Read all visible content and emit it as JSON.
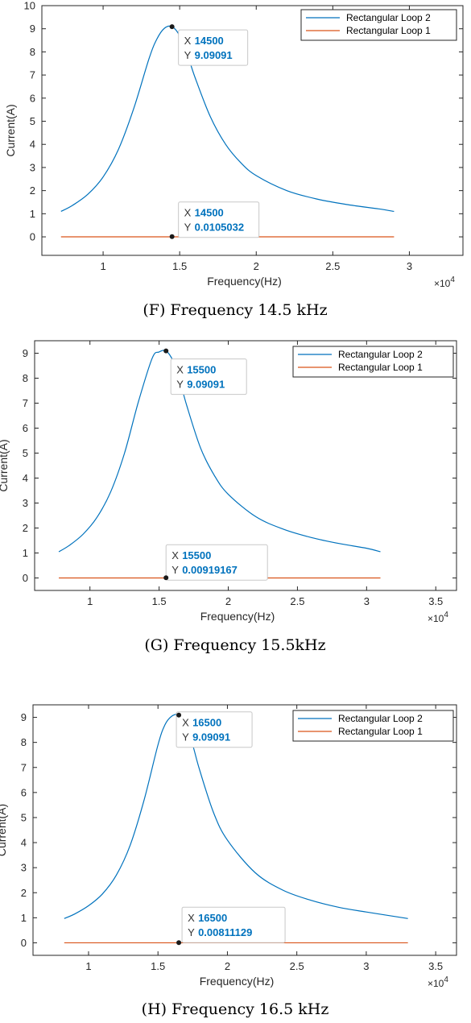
{
  "chart_data": [
    {
      "type": "line",
      "caption": "(F) Frequency 14.5 kHz",
      "xlabel": "Frequency(Hz)",
      "ylabel": "Current(A)",
      "x_exponent": "×10",
      "x_exponent_power": "4",
      "xlim": [
        0.6,
        3.35
      ],
      "ylim": [
        -0.8,
        10
      ],
      "xticks": [
        1,
        1.5,
        2,
        2.5,
        3
      ],
      "xtick_labels": [
        "1",
        "1.5",
        "2",
        "2.5",
        "3"
      ],
      "yticks": [
        0,
        1,
        2,
        3,
        4,
        5,
        6,
        7,
        8,
        9,
        10
      ],
      "ytick_labels": [
        "0",
        "1",
        "2",
        "3",
        "4",
        "5",
        "6",
        "7",
        "8",
        "9",
        "10"
      ],
      "legend_position": "top-right",
      "series": [
        {
          "name": "Rectangular Loop 2",
          "color": "#0072BD",
          "x": [
            0.725,
            0.8,
            0.9,
            1.0,
            1.1,
            1.2,
            1.3,
            1.35,
            1.4,
            1.45,
            1.5,
            1.55,
            1.6,
            1.7,
            1.8,
            1.9,
            2.0,
            2.2,
            2.4,
            2.6,
            2.8,
            2.9
          ],
          "y": [
            1.1,
            1.36,
            1.84,
            2.59,
            3.78,
            5.55,
            7.71,
            8.54,
            9.02,
            9.09091,
            8.7,
            7.9,
            6.9,
            5.2,
            4.0,
            3.2,
            2.65,
            2.0,
            1.63,
            1.39,
            1.21,
            1.1
          ]
        },
        {
          "name": "Rectangular Loop 1",
          "color": "#D95319",
          "x": [
            0.725,
            2.9
          ],
          "y": [
            0.0,
            0.0
          ]
        }
      ],
      "datatips": [
        {
          "x_label": "X",
          "x_value": "14500",
          "y_label": "Y",
          "y_value": "9.09091",
          "px": 1.45,
          "py": 9.09091
        },
        {
          "x_label": "X",
          "x_value": "14500",
          "y_label": "Y",
          "y_value": "0.0105032",
          "px": 1.45,
          "py": 0.0105032
        }
      ]
    },
    {
      "type": "line",
      "caption": "(G) Frequency 15.5kHz",
      "xlabel": "Frequency(Hz)",
      "ylabel": "Current(A)",
      "x_exponent": "×10",
      "x_exponent_power": "4",
      "xlim": [
        0.6,
        3.65
      ],
      "ylim": [
        -0.5,
        9.5
      ],
      "xticks": [
        1,
        1.5,
        2,
        2.5,
        3,
        3.5
      ],
      "xtick_labels": [
        "1",
        "1.5",
        "2",
        "2.5",
        "3",
        "3.5"
      ],
      "yticks": [
        0,
        1,
        2,
        3,
        4,
        5,
        6,
        7,
        8,
        9
      ],
      "ytick_labels": [
        "0",
        "1",
        "2",
        "3",
        "4",
        "5",
        "6",
        "7",
        "8",
        "9"
      ],
      "legend_position": "top-right",
      "series": [
        {
          "name": "Rectangular Loop 2",
          "color": "#0072BD",
          "x": [
            0.775,
            0.85,
            0.95,
            1.05,
            1.15,
            1.25,
            1.35,
            1.45,
            1.5,
            1.55,
            1.6,
            1.65,
            1.7,
            1.8,
            1.9,
            2.0,
            2.2,
            2.4,
            2.6,
            2.8,
            3.0,
            3.1
          ],
          "y": [
            1.05,
            1.3,
            1.75,
            2.42,
            3.45,
            5.0,
            7.05,
            8.8,
            9.05,
            9.09091,
            8.7,
            7.9,
            6.9,
            5.2,
            4.1,
            3.35,
            2.45,
            1.95,
            1.62,
            1.38,
            1.19,
            1.05
          ]
        },
        {
          "name": "Rectangular Loop 1",
          "color": "#D95319",
          "x": [
            0.775,
            3.1
          ],
          "y": [
            0.0,
            0.0
          ]
        }
      ],
      "datatips": [
        {
          "x_label": "X",
          "x_value": "15500",
          "y_label": "Y",
          "y_value": "9.09091",
          "px": 1.55,
          "py": 9.09091
        },
        {
          "x_label": "X",
          "x_value": "15500",
          "y_label": "Y",
          "y_value": "0.00919167",
          "px": 1.55,
          "py": 0.00919167
        }
      ]
    },
    {
      "type": "line",
      "caption": "(H) Frequency 16.5 kHz",
      "xlabel": "Frequency(Hz)",
      "ylabel": "Current(A)",
      "x_exponent": "×10",
      "x_exponent_power": "4",
      "xlim": [
        0.6,
        3.65
      ],
      "ylim": [
        -0.5,
        9.5
      ],
      "xticks": [
        1,
        1.5,
        2,
        2.5,
        3,
        3.5
      ],
      "xtick_labels": [
        "1",
        "1.5",
        "2",
        "2.5",
        "3",
        "3.5"
      ],
      "yticks": [
        0,
        1,
        2,
        3,
        4,
        5,
        6,
        7,
        8,
        9
      ],
      "ytick_labels": [
        "0",
        "1",
        "2",
        "3",
        "4",
        "5",
        "6",
        "7",
        "8",
        "9"
      ],
      "legend_position": "top-right",
      "series": [
        {
          "name": "Rectangular Loop 2",
          "color": "#0072BD",
          "x": [
            0.825,
            0.9,
            1.0,
            1.1,
            1.2,
            1.3,
            1.4,
            1.5,
            1.55,
            1.6,
            1.65,
            1.7,
            1.75,
            1.8,
            1.9,
            2.0,
            2.2,
            2.4,
            2.6,
            2.8,
            3.0,
            3.3
          ],
          "y": [
            0.97,
            1.15,
            1.48,
            1.95,
            2.7,
            3.9,
            5.7,
            7.9,
            8.7,
            9.05,
            9.09091,
            8.7,
            7.9,
            6.9,
            5.2,
            4.1,
            2.8,
            2.1,
            1.7,
            1.42,
            1.23,
            0.97
          ]
        },
        {
          "name": "Rectangular Loop 1",
          "color": "#D95319",
          "x": [
            0.825,
            3.3
          ],
          "y": [
            0.0,
            0.0
          ]
        }
      ],
      "datatips": [
        {
          "x_label": "X",
          "x_value": "16500",
          "y_label": "Y",
          "y_value": "9.09091",
          "px": 1.65,
          "py": 9.09091
        },
        {
          "x_label": "X",
          "x_value": "16500",
          "y_label": "Y",
          "y_value": "0.00811129",
          "px": 1.65,
          "py": 0.00811129
        }
      ]
    }
  ]
}
